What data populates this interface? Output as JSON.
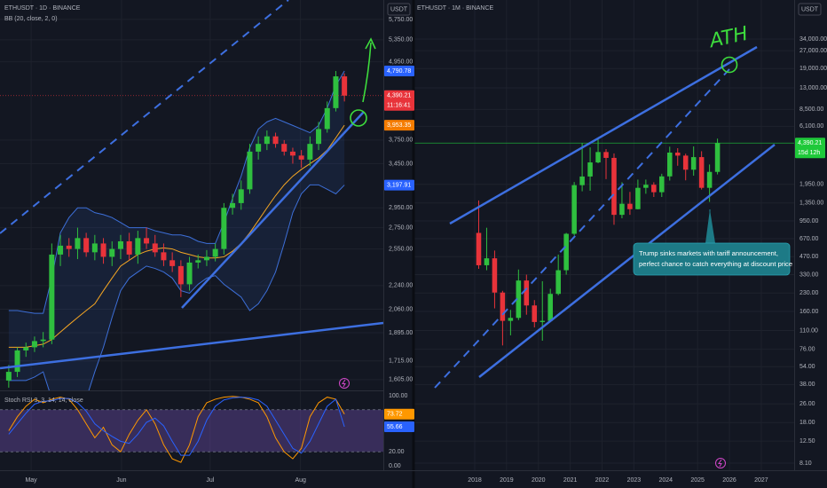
{
  "chart_data": [
    {
      "type": "candlestick",
      "title": "ETHUSDT · 1D · BINANCE",
      "indicator": "BB (20, close, 2, 0)",
      "currency": "USDT",
      "log_scale": true,
      "grid": true,
      "up_color": "#2fbf3f",
      "down_color": "#e8333a",
      "open": [
        1600,
        1650,
        1780,
        1800,
        1840,
        1850,
        2500,
        2580,
        2550,
        2650,
        2520,
        2600,
        2480,
        2550,
        2620,
        2500,
        2650,
        2600,
        2520,
        2450,
        2400,
        2250,
        2430,
        2450,
        2480,
        2550,
        2950,
        3000,
        3150,
        3600,
        3700,
        3800,
        3700,
        3600,
        3550,
        3500,
        3700,
        3900,
        4200,
        4700
      ],
      "high": [
        1690,
        1800,
        1830,
        1870,
        1900,
        2600,
        2680,
        2650,
        2750,
        2700,
        2680,
        2650,
        2620,
        2680,
        2700,
        2720,
        2750,
        2680,
        2600,
        2520,
        2450,
        2480,
        2500,
        2540,
        2600,
        3000,
        3100,
        3250,
        3700,
        3800,
        3880,
        3850,
        3750,
        3650,
        3620,
        3800,
        4000,
        4300,
        4790,
        4750
      ],
      "low": [
        1560,
        1620,
        1740,
        1770,
        1800,
        1820,
        2400,
        2480,
        2460,
        2480,
        2450,
        2420,
        2400,
        2460,
        2450,
        2420,
        2550,
        2480,
        2400,
        2350,
        2150,
        2200,
        2380,
        2400,
        2440,
        2500,
        2880,
        2930,
        3100,
        3500,
        3620,
        3650,
        3550,
        3450,
        3400,
        3420,
        3620,
        3850,
        4150,
        4300
      ],
      "close": [
        1650,
        1780,
        1800,
        1840,
        1850,
        2500,
        2580,
        2550,
        2650,
        2520,
        2600,
        2480,
        2550,
        2620,
        2500,
        2650,
        2600,
        2520,
        2450,
        2400,
        2250,
        2430,
        2450,
        2480,
        2550,
        2950,
        3000,
        3150,
        3600,
        3700,
        3800,
        3700,
        3600,
        3550,
        3500,
        3700,
        3900,
        4200,
        4700,
        4390.21
      ],
      "bb_basis": [
        1800,
        1800,
        1800,
        1810,
        1820,
        1850,
        1900,
        1950,
        2000,
        2050,
        2100,
        2200,
        2300,
        2400,
        2450,
        2500,
        2530,
        2550,
        2560,
        2550,
        2520,
        2500,
        2480,
        2470,
        2470,
        2480,
        2530,
        2600,
        2700,
        2820,
        2950,
        3080,
        3200,
        3300,
        3380,
        3450,
        3520,
        3620,
        3780,
        3953.35
      ],
      "bb_upper": [
        2050,
        2050,
        2040,
        2030,
        2030,
        2300,
        2700,
        2850,
        2950,
        2950,
        2900,
        2880,
        2850,
        2800,
        2750,
        2750,
        2750,
        2720,
        2700,
        2680,
        2680,
        2660,
        2620,
        2600,
        2600,
        2800,
        3050,
        3300,
        3650,
        3900,
        4000,
        4050,
        4000,
        3950,
        3900,
        3850,
        3950,
        4200,
        4550,
        4790.78
      ],
      "bb_lower": [
        1600,
        1600,
        1600,
        1620,
        1650,
        1500,
        1400,
        1350,
        1380,
        1500,
        1650,
        1800,
        2000,
        2200,
        2300,
        2350,
        2400,
        2380,
        2350,
        2300,
        2200,
        2180,
        2250,
        2300,
        2320,
        2250,
        2200,
        2150,
        2050,
        2100,
        2200,
        2350,
        2600,
        2900,
        3100,
        3200,
        3200,
        3150,
        3100,
        3197.91
      ],
      "basis_color": "#f5a623",
      "band_color": "#3d6fd8",
      "ylim": [
        1545,
        6160
      ],
      "yticks": [
        {
          "value": 5750,
          "label": "5,750.00"
        },
        {
          "value": 5350,
          "label": "5,350.00"
        },
        {
          "value": 4950,
          "label": "4,950.00"
        },
        {
          "value": 3750,
          "label": "3,750.00"
        },
        {
          "value": 3450,
          "label": "3,450.00"
        },
        {
          "value": 2950,
          "label": "2,950.00"
        },
        {
          "value": 2750,
          "label": "2,750.00"
        },
        {
          "value": 2550,
          "label": "2,550.00"
        },
        {
          "value": 2240,
          "label": "2,240.00"
        },
        {
          "value": 2060,
          "label": "2,060.00"
        },
        {
          "value": 1895,
          "label": "1,895.00"
        },
        {
          "value": 1715,
          "label": "1,715.00"
        },
        {
          "value": 1605,
          "label": "1,605.00"
        }
      ],
      "xticks": [
        {
          "value": 3.1,
          "label": "May"
        },
        {
          "value": 13.6,
          "label": "Jun"
        },
        {
          "value": 23.9,
          "label": "Jul"
        },
        {
          "value": 34.4,
          "label": "Aug"
        }
      ],
      "price_labels": [
        {
          "value": 4790.78,
          "label": "4,790.78",
          "color": "#2962ff"
        },
        {
          "value": 4390.21,
          "label": "4,390.21",
          "color": "#e8333a",
          "countdown": "11:16:41"
        },
        {
          "value": 3953.35,
          "label": "3,953.35",
          "color": "#f57c00"
        },
        {
          "value": 3197.91,
          "label": "3,197.91",
          "color": "#2962ff"
        }
      ],
      "oscillator": {
        "type": "line",
        "title": "Stoch RSI 3, 3, 14, 14, close",
        "ylim": [
          0,
          100
        ],
        "band": [
          20,
          80
        ],
        "band_color": "#7e57c2",
        "yticks": [
          {
            "value": 100,
            "label": "100.00"
          },
          {
            "value": 20,
            "label": "20.00"
          },
          {
            "value": 0,
            "label": "0.00"
          }
        ],
        "series": [
          {
            "color": "#ff9800",
            "values": [
              50,
              70,
              85,
              95,
              90,
              95,
              98,
              95,
              80,
              60,
              40,
              55,
              30,
              20,
              45,
              65,
              80,
              60,
              30,
              10,
              5,
              30,
              70,
              90,
              95,
              98,
              99,
              98,
              95,
              90,
              70,
              40,
              20,
              10,
              25,
              70,
              90,
              98,
              95,
              73.72
            ],
            "value_label": "73.72"
          },
          {
            "color": "#2962ff",
            "values": [
              45,
              60,
              75,
              88,
              92,
              93,
              96,
              96,
              90,
              78,
              60,
              50,
              42,
              35,
              32,
              45,
              62,
              68,
              57,
              35,
              15,
              15,
              35,
              65,
              85,
              94,
              97,
              98,
              97,
              94,
              85,
              65,
              45,
              25,
              18,
              35,
              60,
              85,
              95,
              55.66
            ],
            "value_label": "55.66"
          }
        ]
      }
    },
    {
      "type": "candlestick",
      "title": "ETHUSDT · 1M · BINANCE",
      "currency": "USDT",
      "log_scale": true,
      "grid": true,
      "up_color": "#2fbf3f",
      "down_color": "#e8333a",
      "open": [
        750,
        397,
        455,
        232,
        133,
        141,
        294,
        180,
        130,
        133,
        226,
        360,
        737,
        1918,
        2274,
        3000,
        3680,
        3280,
        1070,
        1330,
        1196,
        1820,
        1934,
        1670,
        2280,
        3640,
        3430,
        2600,
        3330,
        1820,
        2490
      ],
      "high": [
        1420,
        830,
        530,
        240,
        165,
        365,
        330,
        200,
        290,
        250,
        490,
        750,
        2040,
        4380,
        4030,
        4870,
        3900,
        3580,
        2030,
        1680,
        2140,
        2140,
        2030,
        2400,
        4090,
        3970,
        3560,
        4110,
        3740,
        2880,
        4790
      ],
      "low": [
        370,
        360,
        170,
        82,
        100,
        135,
        150,
        117,
        90,
        130,
        220,
        330,
        714,
        1700,
        1720,
        2950,
        2160,
        880,
        1000,
        1070,
        1190,
        1620,
        1520,
        1520,
        2100,
        2810,
        2110,
        2310,
        1760,
        1380,
        2370
      ],
      "close": [
        397,
        455,
        232,
        133,
        141,
        294,
        180,
        130,
        133,
        226,
        360,
        737,
        1918,
        2274,
        3000,
        3680,
        3280,
        1070,
        1330,
        1196,
        1820,
        1934,
        1670,
        2280,
        3640,
        3430,
        2600,
        3330,
        1820,
        2490,
        4390.21
      ],
      "ylim": [
        7.04,
        73200
      ],
      "yticks": [
        {
          "value": 34000,
          "label": "34,000.00"
        },
        {
          "value": 27000,
          "label": "27,000.00"
        },
        {
          "value": 19000,
          "label": "19,000.00"
        },
        {
          "value": 13000,
          "label": "13,000.00"
        },
        {
          "value": 8500,
          "label": "8,500.00"
        },
        {
          "value": 6100,
          "label": "6,100.00"
        },
        {
          "value": 1950,
          "label": "1,950.00"
        },
        {
          "value": 1350,
          "label": "1,350.00"
        },
        {
          "value": 950,
          "label": "950.00"
        },
        {
          "value": 670,
          "label": "670.00"
        },
        {
          "value": 470,
          "label": "470.00"
        },
        {
          "value": 330,
          "label": "330.00"
        },
        {
          "value": 230,
          "label": "230.00"
        },
        {
          "value": 160,
          "label": "160.00"
        },
        {
          "value": 110,
          "label": "110.00"
        },
        {
          "value": 76,
          "label": "76.00"
        },
        {
          "value": 54,
          "label": "54.00"
        },
        {
          "value": 38,
          "label": "38.00"
        },
        {
          "value": 26,
          "label": "26.00"
        },
        {
          "value": 18,
          "label": "18.00"
        },
        {
          "value": 12.5,
          "label": "12.50"
        },
        {
          "value": 8.1,
          "label": "8.10"
        }
      ],
      "xticks": [
        {
          "value": 0,
          "label": "2018"
        },
        {
          "value": 4,
          "label": "2019"
        },
        {
          "value": 8,
          "label": "2020"
        },
        {
          "value": 12,
          "label": "2021"
        },
        {
          "value": 16,
          "label": "2022"
        },
        {
          "value": 20,
          "label": "2023"
        },
        {
          "value": 24,
          "label": "2024"
        },
        {
          "value": 28,
          "label": "2025"
        },
        {
          "value": 32,
          "label": "2026"
        },
        {
          "value": 36,
          "label": "2027"
        }
      ],
      "price_labels": [
        {
          "value": 4390.21,
          "label": "4,390.21",
          "color": "#1fc93a",
          "countdown": "15d 12h"
        }
      ],
      "drawing_label": "ATH",
      "callout": [
        "Trump sinks markets with tariff announcement,",
        "perfect chance to catch everything at discount price"
      ]
    }
  ]
}
